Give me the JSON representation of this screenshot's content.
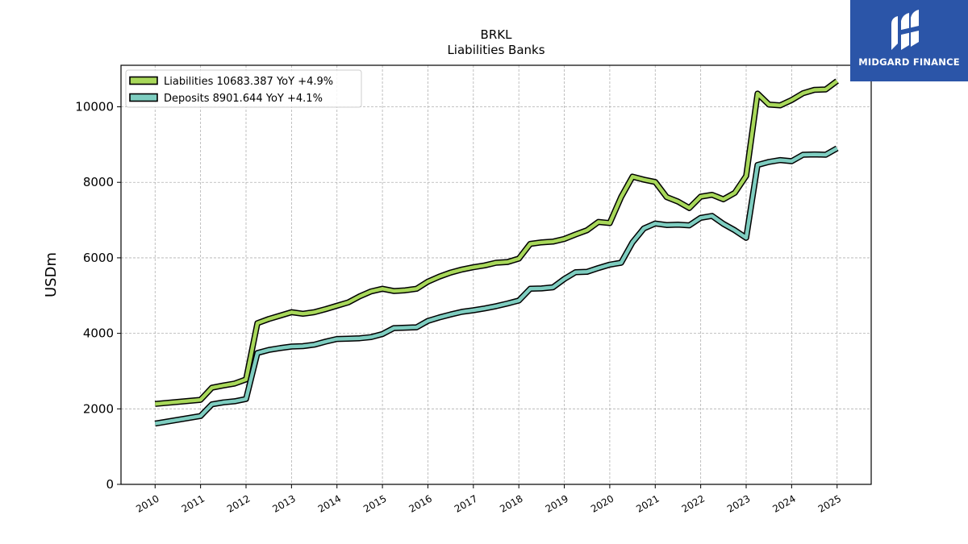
{
  "chart_data": {
    "type": "line",
    "title": "BRKL",
    "subtitle": "Liabilities Banks",
    "ylabel": "USDm",
    "xlabel": "",
    "ylim": [
      0,
      11100
    ],
    "xlim": [
      2009.25,
      2025.75
    ],
    "yticks": [
      0,
      2000,
      4000,
      6000,
      8000,
      10000
    ],
    "xticks": [
      2010,
      2011,
      2012,
      2013,
      2014,
      2015,
      2016,
      2017,
      2018,
      2019,
      2020,
      2021,
      2022,
      2023,
      2024,
      2025
    ],
    "grid": true,
    "legend_position": "top-left",
    "series": [
      {
        "name": "Liabilities  10683.387 YoY +4.9%",
        "color": "#a8d85a",
        "points": [
          [
            2010.0,
            2130
          ],
          [
            2011.0,
            2240
          ],
          [
            2011.25,
            2560
          ],
          [
            2011.5,
            2620
          ],
          [
            2011.75,
            2670
          ],
          [
            2012.0,
            2780
          ],
          [
            2012.25,
            4270
          ],
          [
            2012.5,
            4380
          ],
          [
            2012.75,
            4470
          ],
          [
            2013.0,
            4560
          ],
          [
            2013.25,
            4520
          ],
          [
            2013.5,
            4560
          ],
          [
            2013.75,
            4640
          ],
          [
            2014.0,
            4730
          ],
          [
            2014.25,
            4820
          ],
          [
            2014.5,
            4980
          ],
          [
            2014.75,
            5110
          ],
          [
            2015.0,
            5180
          ],
          [
            2015.25,
            5120
          ],
          [
            2015.5,
            5140
          ],
          [
            2015.75,
            5180
          ],
          [
            2016.0,
            5370
          ],
          [
            2016.25,
            5500
          ],
          [
            2016.5,
            5610
          ],
          [
            2016.75,
            5690
          ],
          [
            2017.0,
            5750
          ],
          [
            2017.25,
            5800
          ],
          [
            2017.5,
            5870
          ],
          [
            2017.75,
            5890
          ],
          [
            2018.0,
            5980
          ],
          [
            2018.25,
            6370
          ],
          [
            2018.5,
            6410
          ],
          [
            2018.75,
            6430
          ],
          [
            2019.0,
            6500
          ],
          [
            2019.25,
            6620
          ],
          [
            2019.5,
            6730
          ],
          [
            2019.75,
            6950
          ],
          [
            2020.0,
            6920
          ],
          [
            2020.25,
            7610
          ],
          [
            2020.5,
            8150
          ],
          [
            2020.75,
            8070
          ],
          [
            2021.0,
            8010
          ],
          [
            2021.25,
            7610
          ],
          [
            2021.5,
            7490
          ],
          [
            2021.75,
            7320
          ],
          [
            2022.0,
            7620
          ],
          [
            2022.25,
            7670
          ],
          [
            2022.5,
            7550
          ],
          [
            2022.75,
            7720
          ],
          [
            2023.0,
            8170
          ],
          [
            2023.25,
            10350
          ],
          [
            2023.5,
            10060
          ],
          [
            2023.75,
            10040
          ],
          [
            2024.0,
            10180
          ],
          [
            2024.25,
            10360
          ],
          [
            2024.5,
            10450
          ],
          [
            2024.75,
            10460
          ],
          [
            2025.0,
            10683
          ]
        ]
      },
      {
        "name": "Deposits  8901.644 YoY +4.1%",
        "color": "#7ecdc0",
        "points": [
          [
            2010.0,
            1610
          ],
          [
            2011.0,
            1810
          ],
          [
            2011.25,
            2120
          ],
          [
            2011.5,
            2170
          ],
          [
            2011.75,
            2200
          ],
          [
            2012.0,
            2260
          ],
          [
            2012.25,
            3480
          ],
          [
            2012.5,
            3560
          ],
          [
            2012.75,
            3610
          ],
          [
            2013.0,
            3650
          ],
          [
            2013.25,
            3660
          ],
          [
            2013.5,
            3700
          ],
          [
            2013.75,
            3780
          ],
          [
            2014.0,
            3850
          ],
          [
            2014.25,
            3860
          ],
          [
            2014.5,
            3870
          ],
          [
            2014.75,
            3900
          ],
          [
            2015.0,
            3980
          ],
          [
            2015.25,
            4140
          ],
          [
            2015.5,
            4150
          ],
          [
            2015.75,
            4160
          ],
          [
            2016.0,
            4330
          ],
          [
            2016.25,
            4420
          ],
          [
            2016.5,
            4500
          ],
          [
            2016.75,
            4570
          ],
          [
            2017.0,
            4610
          ],
          [
            2017.25,
            4660
          ],
          [
            2017.5,
            4720
          ],
          [
            2017.75,
            4790
          ],
          [
            2018.0,
            4870
          ],
          [
            2018.25,
            5180
          ],
          [
            2018.5,
            5190
          ],
          [
            2018.75,
            5220
          ],
          [
            2019.0,
            5440
          ],
          [
            2019.25,
            5620
          ],
          [
            2019.5,
            5630
          ],
          [
            2019.75,
            5730
          ],
          [
            2020.0,
            5820
          ],
          [
            2020.25,
            5870
          ],
          [
            2020.5,
            6410
          ],
          [
            2020.75,
            6780
          ],
          [
            2021.0,
            6910
          ],
          [
            2021.25,
            6870
          ],
          [
            2021.5,
            6880
          ],
          [
            2021.75,
            6860
          ],
          [
            2022.0,
            7060
          ],
          [
            2022.25,
            7110
          ],
          [
            2022.5,
            6900
          ],
          [
            2022.75,
            6730
          ],
          [
            2023.0,
            6530
          ],
          [
            2023.25,
            8460
          ],
          [
            2023.5,
            8540
          ],
          [
            2023.75,
            8590
          ],
          [
            2024.0,
            8560
          ],
          [
            2024.25,
            8730
          ],
          [
            2024.5,
            8740
          ],
          [
            2024.75,
            8730
          ],
          [
            2025.0,
            8902
          ]
        ]
      }
    ]
  },
  "logo": {
    "text": "MIDGARD FINANCE",
    "background": "#2b55a8"
  }
}
